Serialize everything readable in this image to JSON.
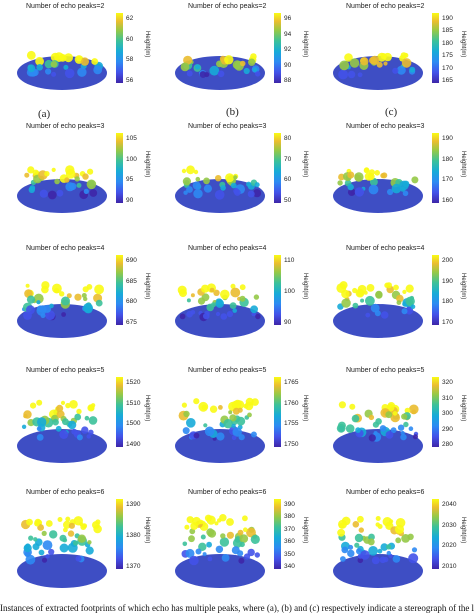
{
  "title_prefix": "Number of echo peaks=",
  "height_label": "Height(m)",
  "column_labels": [
    "(a)",
    "(b)",
    "(c)"
  ],
  "caption": "Instances of extracted footprints of which echo has multiple peaks, where (a), (b) and (c) respectively indicate a stereograph of the lidar data w",
  "rows": [
    {
      "peaks": "2",
      "panels": [
        {
          "ticks": [
            "62",
            "60",
            "58",
            "56"
          ]
        },
        {
          "ticks": [
            "96",
            "94",
            "92",
            "90",
            "88"
          ]
        },
        {
          "ticks": [
            "190",
            "185",
            "180",
            "175",
            "170",
            "165"
          ]
        }
      ]
    },
    {
      "peaks": "3",
      "panels": [
        {
          "ticks": [
            "105",
            "100",
            "95",
            "90"
          ]
        },
        {
          "ticks": [
            "80",
            "70",
            "60",
            "50"
          ]
        },
        {
          "ticks": [
            "190",
            "180",
            "170",
            "160"
          ]
        }
      ]
    },
    {
      "peaks": "4",
      "panels": [
        {
          "ticks": [
            "690",
            "685",
            "680",
            "675"
          ]
        },
        {
          "ticks": [
            "110",
            "100",
            "90"
          ]
        },
        {
          "ticks": [
            "200",
            "190",
            "180",
            "170"
          ]
        }
      ]
    },
    {
      "peaks": "5",
      "panels": [
        {
          "ticks": [
            "1520",
            "1510",
            "1500",
            "1490"
          ]
        },
        {
          "ticks": [
            "1765",
            "1760",
            "1755",
            "1750"
          ]
        },
        {
          "ticks": [
            "320",
            "310",
            "300",
            "290",
            "280"
          ]
        }
      ]
    },
    {
      "peaks": "6",
      "panels": [
        {
          "ticks": [
            "1390",
            "1380",
            "1370"
          ]
        },
        {
          "ticks": [
            "390",
            "380",
            "370",
            "360",
            "350",
            "340"
          ]
        },
        {
          "ticks": [
            "2040",
            "2030",
            "2020",
            "2010"
          ]
        }
      ]
    }
  ],
  "colors": {
    "low": "#3e26a8",
    "mid": "#17abd8",
    "high": "#f9fb15"
  }
}
